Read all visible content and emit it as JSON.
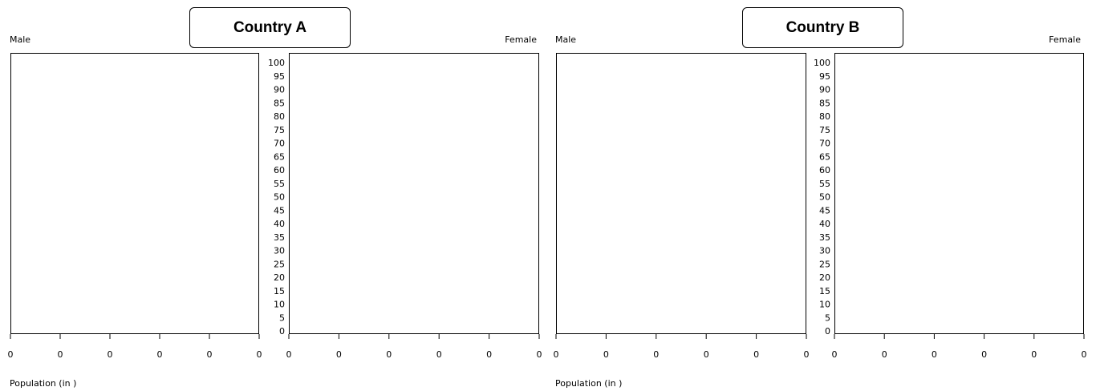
{
  "chart_data": [
    {
      "type": "bar",
      "title": "Country A",
      "left_label": "Male",
      "right_label": "Female",
      "xlabel": "Population (in )",
      "age_ticks": [
        "100",
        "95",
        "90",
        "85",
        "80",
        "75",
        "70",
        "65",
        "60",
        "55",
        "50",
        "45",
        "40",
        "35",
        "30",
        "25",
        "20",
        "15",
        "10",
        "5",
        "0"
      ],
      "male_x_ticks": [
        "0",
        "0",
        "0",
        "0",
        "0",
        "0"
      ],
      "female_x_ticks": [
        "0",
        "0",
        "0",
        "0",
        "0",
        "0"
      ],
      "series": []
    },
    {
      "type": "bar",
      "title": "Country B",
      "left_label": "Male",
      "right_label": "Female",
      "xlabel": "Population (in )",
      "age_ticks": [
        "100",
        "95",
        "90",
        "85",
        "80",
        "75",
        "70",
        "65",
        "60",
        "55",
        "50",
        "45",
        "40",
        "35",
        "30",
        "25",
        "20",
        "15",
        "10",
        "5",
        "0"
      ],
      "male_x_ticks": [
        "0",
        "0",
        "0",
        "0",
        "0",
        "0"
      ],
      "female_x_ticks": [
        "0",
        "0",
        "0",
        "0",
        "0",
        "0"
      ],
      "series": []
    }
  ]
}
